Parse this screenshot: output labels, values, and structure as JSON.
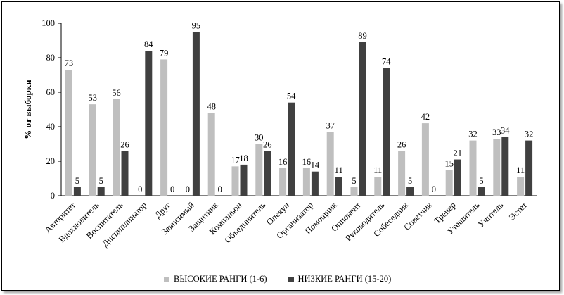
{
  "chart_data": {
    "type": "bar",
    "ylabel": "% от выборки",
    "ylim": [
      0,
      100
    ],
    "yticks": [
      0,
      20,
      40,
      60,
      80,
      100
    ],
    "grid": false,
    "legend_position": "bottom",
    "categories": [
      "Авторитет",
      "Вдохновитель",
      "Воспитатель",
      "Дисциплинатор",
      "Друг",
      "Зависимый",
      "Защитник",
      "Компаньон",
      "Объединитель",
      "Опекун",
      "Организатор",
      "Помощник",
      "Оппонент",
      "Руководитель",
      "Собеседник",
      "Советчик",
      "Тренер",
      "Утешитель",
      "Учитель",
      "Эстет"
    ],
    "series": [
      {
        "name": "ВЫСОКИЕ РАНГИ (1-6)",
        "color": "#bfbfbf",
        "values": [
          73,
          53,
          56,
          0,
          79,
          0,
          48,
          17,
          30,
          16,
          16,
          37,
          5,
          11,
          26,
          42,
          15,
          32,
          33,
          11
        ]
      },
      {
        "name": "НИЗКИЕ РАНГИ (15-20)",
        "color": "#404040",
        "values": [
          5,
          5,
          26,
          84,
          0,
          95,
          0,
          18,
          26,
          54,
          14,
          11,
          89,
          74,
          5,
          0,
          21,
          5,
          34,
          32
        ]
      }
    ]
  }
}
